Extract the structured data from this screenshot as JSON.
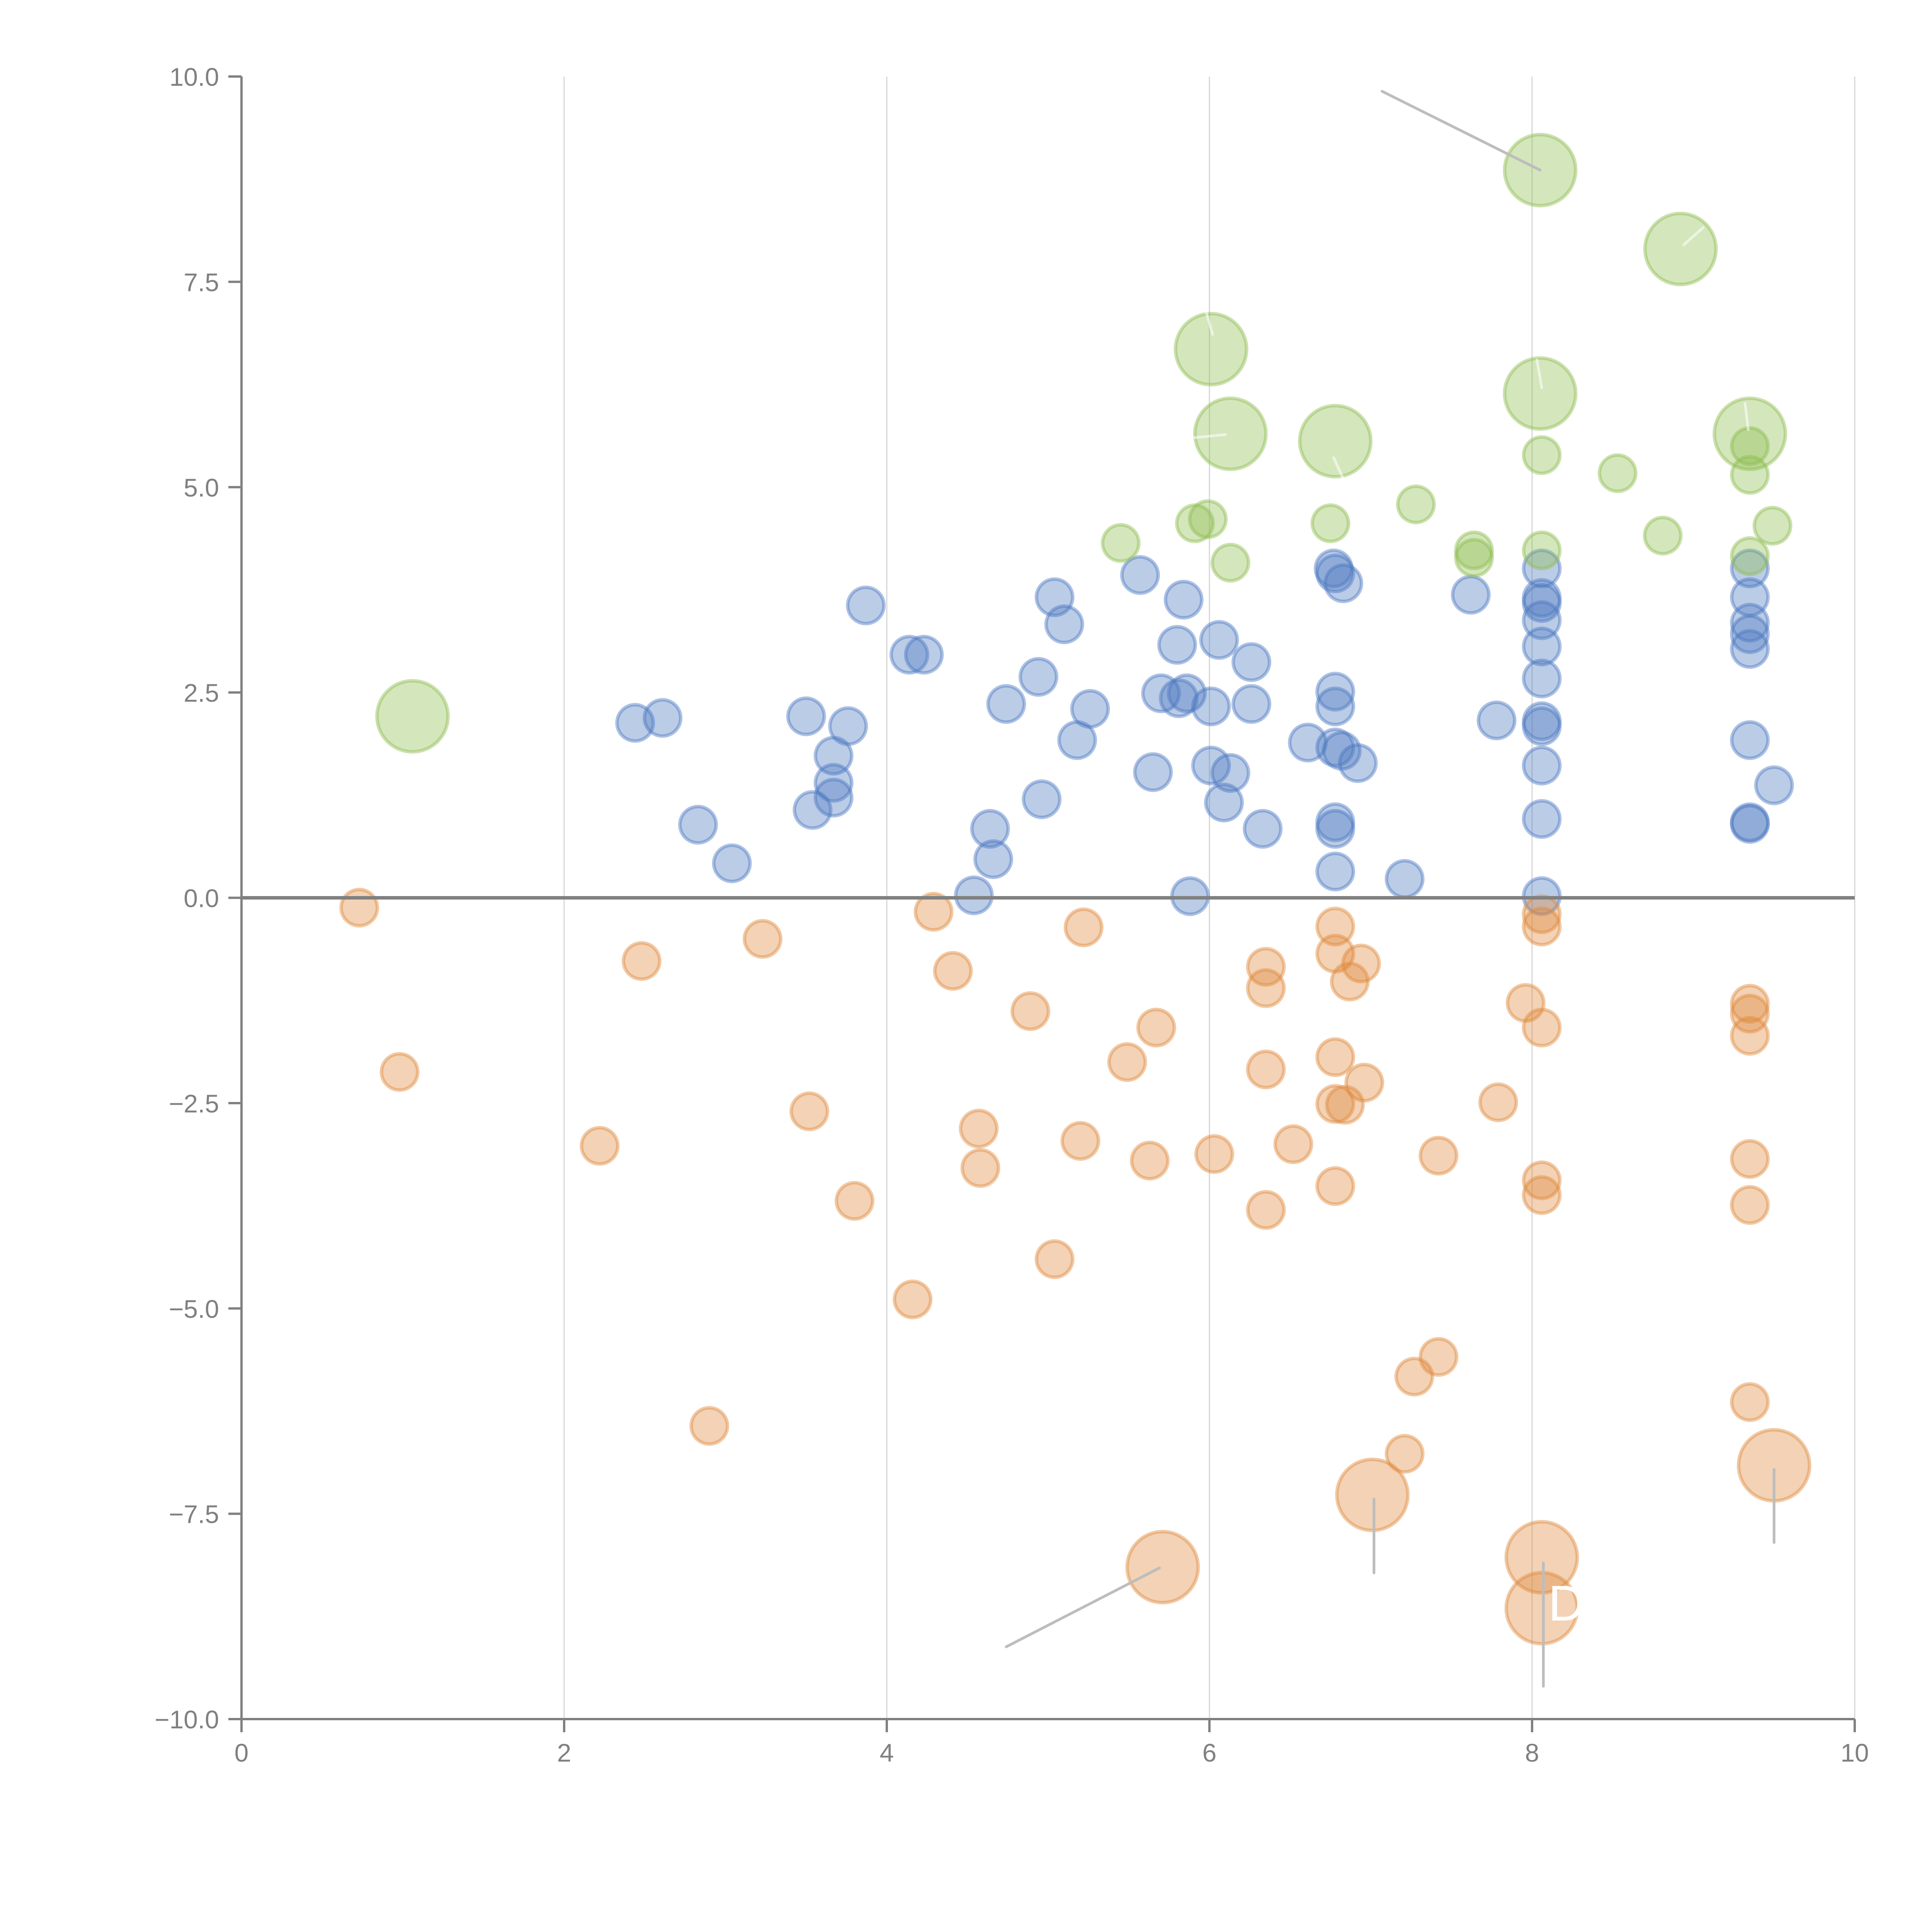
{
  "chart_data": {
    "type": "scatter",
    "title": "",
    "xlabel": "",
    "ylabel": "",
    "xlim": [
      0,
      10
    ],
    "ylim": [
      -10,
      10
    ],
    "grid": "vertical",
    "legend": "none",
    "x_ticks": [
      "0",
      "2",
      "4",
      "6",
      "8",
      "10"
    ],
    "x_tick_values": [
      0,
      2,
      4,
      6,
      8,
      10
    ],
    "y_ticks": [
      "10.0",
      "7.5",
      "5.0",
      "2.5",
      "0.0",
      "−2.5",
      "−5.0",
      "−7.5",
      "−10.0"
    ],
    "y_tick_values": [
      10,
      7.5,
      5,
      2.5,
      0,
      -2.5,
      -5,
      -7.5,
      -10
    ],
    "zero_line": 0,
    "colors": {
      "blue": "#4c78c0",
      "orange": "#e08a3c",
      "green": "#8fbc50",
      "axis": "#808080",
      "grid": "#d6d6d6"
    },
    "size_scale": {
      "small": 1,
      "large": 2
    },
    "series": [
      {
        "name": "blue",
        "color": "#4c78c0",
        "points": [
          [
            2.44,
            2.13,
            1
          ],
          [
            2.61,
            2.19,
            1
          ],
          [
            2.83,
            0.89,
            1
          ],
          [
            3.04,
            0.42,
            1
          ],
          [
            3.5,
            2.21,
            1
          ],
          [
            3.76,
            2.09,
            1
          ],
          [
            3.67,
            1.73,
            1
          ],
          [
            3.67,
            1.4,
            1
          ],
          [
            3.67,
            1.22,
            1
          ],
          [
            3.54,
            1.07,
            1
          ],
          [
            3.87,
            3.56,
            1
          ],
          [
            4.14,
            2.96,
            1
          ],
          [
            4.23,
            2.96,
            1
          ],
          [
            4.54,
            0.03,
            1
          ],
          [
            4.64,
            0.84,
            1
          ],
          [
            4.66,
            0.47,
            1
          ],
          [
            4.74,
            2.36,
            1
          ],
          [
            4.94,
            2.69,
            1
          ],
          [
            4.96,
            1.2,
            1
          ],
          [
            5.04,
            3.66,
            1
          ],
          [
            5.1,
            3.33,
            1
          ],
          [
            5.18,
            1.92,
            1
          ],
          [
            5.26,
            2.3,
            1
          ],
          [
            5.57,
            3.93,
            1
          ],
          [
            5.65,
            1.53,
            1
          ],
          [
            5.7,
            2.49,
            1
          ],
          [
            5.8,
            3.08,
            1
          ],
          [
            5.84,
            3.63,
            1
          ],
          [
            5.81,
            2.43,
            1
          ],
          [
            5.86,
            2.49,
            1
          ],
          [
            5.88,
            0.02,
            1
          ],
          [
            6.01,
            2.33,
            1
          ],
          [
            6.01,
            1.61,
            1
          ],
          [
            6.06,
            3.14,
            1
          ],
          [
            6.09,
            1.16,
            1
          ],
          [
            6.13,
            1.52,
            1
          ],
          [
            6.26,
            2.87,
            1
          ],
          [
            6.26,
            2.36,
            1
          ],
          [
            6.33,
            0.84,
            1
          ],
          [
            6.61,
            1.89,
            1
          ],
          [
            6.77,
            4.01,
            1
          ],
          [
            6.78,
            3.95,
            1
          ],
          [
            6.83,
            3.83,
            1
          ],
          [
            6.78,
            2.51,
            1
          ],
          [
            6.78,
            2.33,
            1
          ],
          [
            6.78,
            1.83,
            1
          ],
          [
            6.82,
            1.79,
            1
          ],
          [
            6.92,
            1.64,
            1
          ],
          [
            6.78,
            0.92,
            1
          ],
          [
            6.78,
            0.84,
            1
          ],
          [
            6.78,
            0.32,
            1
          ],
          [
            7.21,
            0.23,
            1
          ],
          [
            7.62,
            3.69,
            1
          ],
          [
            7.78,
            2.16,
            1
          ],
          [
            8.06,
            4.01,
            1
          ],
          [
            8.06,
            3.65,
            1
          ],
          [
            8.06,
            3.59,
            1
          ],
          [
            8.06,
            3.38,
            1
          ],
          [
            8.06,
            3.06,
            1
          ],
          [
            8.06,
            2.67,
            1
          ],
          [
            8.06,
            2.15,
            1
          ],
          [
            8.06,
            2.09,
            1
          ],
          [
            8.06,
            1.61,
            1
          ],
          [
            8.06,
            0.96,
            1
          ],
          [
            8.06,
            0.02,
            1
          ],
          [
            9.35,
            4.01,
            1
          ],
          [
            9.35,
            3.66,
            1
          ],
          [
            9.35,
            3.35,
            1
          ],
          [
            9.35,
            3.21,
            1
          ],
          [
            9.35,
            3.03,
            1
          ],
          [
            9.35,
            1.92,
            1
          ],
          [
            9.5,
            1.37,
            1
          ],
          [
            9.35,
            0.92,
            1
          ],
          [
            9.35,
            0.9,
            1
          ]
        ]
      },
      {
        "name": "orange",
        "color": "#e08a3c",
        "points": [
          [
            0.73,
            -0.12,
            1
          ],
          [
            0.98,
            -2.12,
            1
          ],
          [
            2.22,
            -3.02,
            1
          ],
          [
            2.48,
            -0.77,
            1
          ],
          [
            2.9,
            -6.43,
            1
          ],
          [
            3.23,
            -0.5,
            1
          ],
          [
            3.52,
            -2.6,
            1
          ],
          [
            3.8,
            -3.69,
            1
          ],
          [
            4.16,
            -4.89,
            1
          ],
          [
            4.29,
            -0.17,
            1
          ],
          [
            4.41,
            -0.89,
            1
          ],
          [
            4.57,
            -2.81,
            1
          ],
          [
            4.58,
            -3.29,
            1
          ],
          [
            4.89,
            -1.38,
            1
          ],
          [
            5.04,
            -4.4,
            1
          ],
          [
            5.2,
            -2.96,
            1
          ],
          [
            5.22,
            -0.36,
            1
          ],
          [
            5.49,
            -2.0,
            1
          ],
          [
            5.63,
            -3.2,
            1
          ],
          [
            5.67,
            -1.58,
            1
          ],
          [
            5.71,
            -8.15,
            2
          ],
          [
            6.03,
            -3.12,
            1
          ],
          [
            6.35,
            -0.84,
            1
          ],
          [
            6.35,
            -1.1,
            1
          ],
          [
            6.35,
            -2.09,
            1
          ],
          [
            6.35,
            -3.8,
            1
          ],
          [
            6.52,
            -3.0,
            1
          ],
          [
            6.78,
            -0.35,
            1
          ],
          [
            6.78,
            -0.68,
            1
          ],
          [
            6.94,
            -0.8,
            1
          ],
          [
            6.87,
            -1.02,
            1
          ],
          [
            6.78,
            -1.94,
            1
          ],
          [
            6.96,
            -2.25,
            1
          ],
          [
            6.78,
            -2.51,
            1
          ],
          [
            6.84,
            -2.52,
            1
          ],
          [
            6.78,
            -3.51,
            1
          ],
          [
            7.01,
            -7.27,
            2
          ],
          [
            7.21,
            -6.77,
            1
          ],
          [
            7.27,
            -5.83,
            1
          ],
          [
            7.42,
            -5.59,
            1
          ],
          [
            7.42,
            -3.14,
            1
          ],
          [
            7.79,
            -2.49,
            1
          ],
          [
            7.96,
            -1.28,
            1
          ],
          [
            8.06,
            -0.2,
            1
          ],
          [
            8.06,
            -0.35,
            1
          ],
          [
            8.06,
            -1.58,
            1
          ],
          [
            8.06,
            -3.44,
            1
          ],
          [
            8.06,
            -3.62,
            1
          ],
          [
            8.06,
            -8.03,
            2
          ],
          [
            8.06,
            -8.65,
            2
          ],
          [
            9.35,
            -1.29,
            1
          ],
          [
            9.35,
            -1.41,
            1
          ],
          [
            9.35,
            -1.68,
            1
          ],
          [
            9.35,
            -3.18,
            1
          ],
          [
            9.35,
            -3.74,
            1
          ],
          [
            9.35,
            -6.14,
            1
          ],
          [
            9.5,
            -6.91,
            2
          ]
        ]
      },
      {
        "name": "green",
        "color": "#8fbc50",
        "points": [
          [
            1.06,
            2.21,
            2
          ],
          [
            8.05,
            8.86,
            2
          ],
          [
            8.92,
            7.9,
            2
          ],
          [
            6.01,
            6.68,
            2
          ],
          [
            8.05,
            6.14,
            2
          ],
          [
            6.13,
            5.65,
            2
          ],
          [
            6.78,
            5.56,
            2
          ],
          [
            9.35,
            5.65,
            2
          ],
          [
            8.06,
            5.39,
            1
          ],
          [
            8.53,
            5.17,
            1
          ],
          [
            9.35,
            5.5,
            1
          ],
          [
            9.35,
            5.15,
            1
          ],
          [
            7.28,
            4.79,
            1
          ],
          [
            9.49,
            4.53,
            1
          ],
          [
            8.81,
            4.41,
            1
          ],
          [
            6.75,
            4.56,
            1
          ],
          [
            5.99,
            4.61,
            1
          ],
          [
            5.91,
            4.56,
            1
          ],
          [
            5.45,
            4.32,
            1
          ],
          [
            6.13,
            4.08,
            1
          ],
          [
            7.64,
            4.23,
            1
          ],
          [
            7.64,
            4.14,
            1
          ],
          [
            8.06,
            4.23,
            1
          ],
          [
            9.35,
            4.16,
            1
          ]
        ]
      }
    ],
    "annotations": [
      {
        "text": "D",
        "x": 8.1,
        "y": -8.8,
        "color": "#ffffff"
      }
    ],
    "leader_lines": [
      {
        "from": [
          7.07,
          9.82
        ],
        "to": [
          8.05,
          8.86
        ],
        "style": "gray"
      },
      {
        "from": [
          4.74,
          -9.12
        ],
        "to": [
          5.69,
          -8.16
        ],
        "style": "gray"
      },
      {
        "from": [
          7.02,
          -7.32
        ],
        "to": [
          7.02,
          -8.22
        ],
        "style": "gray"
      },
      {
        "from": [
          8.07,
          -8.1
        ],
        "to": [
          8.07,
          -9.6
        ],
        "style": "gray"
      },
      {
        "from": [
          9.5,
          -6.96
        ],
        "to": [
          9.5,
          -7.85
        ],
        "style": "gray"
      },
      {
        "from": [
          5.98,
          7.13
        ],
        "to": [
          6.02,
          6.86
        ],
        "style": "white"
      },
      {
        "from": [
          5.89,
          5.6
        ],
        "to": [
          6.1,
          5.64
        ],
        "style": "white"
      },
      {
        "from": [
          6.83,
          5.1
        ],
        "to": [
          6.77,
          5.36
        ],
        "style": "white"
      },
      {
        "from": [
          8.03,
          6.55
        ],
        "to": [
          8.06,
          6.21
        ],
        "style": "white"
      },
      {
        "from": [
          9.06,
          8.16
        ],
        "to": [
          8.94,
          7.95
        ],
        "style": "white"
      },
      {
        "from": [
          9.32,
          6.02
        ],
        "to": [
          9.34,
          5.7
        ],
        "style": "white"
      }
    ]
  }
}
